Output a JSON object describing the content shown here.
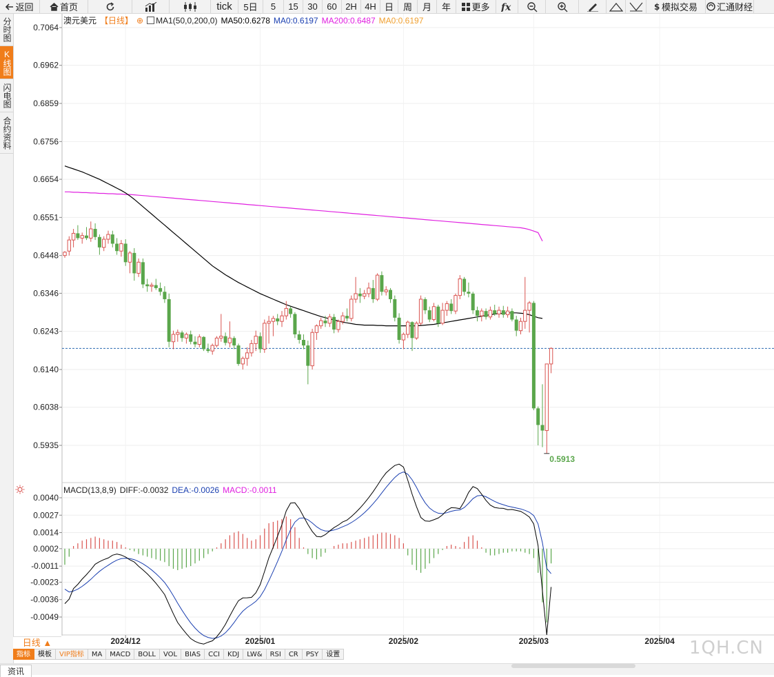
{
  "toolbar": {
    "items": [
      {
        "id": "back",
        "label": "返回",
        "icon": "back-arrow-icon"
      },
      {
        "id": "home",
        "label": "首页",
        "icon": "home-icon"
      },
      {
        "id": "refresh",
        "label": "",
        "icon": "refresh-icon"
      },
      {
        "id": "bars",
        "label": "",
        "icon": "bar-chart-icon"
      },
      {
        "id": "candle",
        "label": "",
        "icon": "candlestick-icon"
      },
      {
        "id": "tick",
        "label": "tick",
        "icon": ""
      },
      {
        "id": "d5",
        "label": "5日",
        "icon": ""
      },
      {
        "id": "m5",
        "label": "5",
        "icon": ""
      },
      {
        "id": "m15",
        "label": "15",
        "icon": ""
      },
      {
        "id": "m30",
        "label": "30",
        "icon": ""
      },
      {
        "id": "m60",
        "label": "60",
        "icon": ""
      },
      {
        "id": "h2",
        "label": "2H",
        "icon": ""
      },
      {
        "id": "h4",
        "label": "4H",
        "icon": ""
      },
      {
        "id": "day",
        "label": "日",
        "icon": ""
      },
      {
        "id": "week",
        "label": "周",
        "icon": ""
      },
      {
        "id": "month",
        "label": "月",
        "icon": ""
      },
      {
        "id": "year",
        "label": "年",
        "icon": ""
      },
      {
        "id": "more",
        "label": "更多",
        "icon": "grid-icon"
      },
      {
        "id": "fx",
        "label": "",
        "icon": "function-icon"
      },
      {
        "id": "zoomout",
        "label": "",
        "icon": "zoom-out-icon"
      },
      {
        "id": "zoomin",
        "label": "",
        "icon": "zoom-in-icon"
      },
      {
        "id": "draw",
        "label": "",
        "icon": "pen-icon"
      },
      {
        "id": "up",
        "label": "",
        "icon": "triangle-up-icon"
      },
      {
        "id": "down",
        "label": "",
        "icon": "triangle-down-icon"
      },
      {
        "id": "sim",
        "label": "模拟交易",
        "icon": "dollar-icon"
      },
      {
        "id": "huitong",
        "label": "汇通财经",
        "icon": "logo-icon"
      }
    ]
  },
  "sidetabs": [
    {
      "label": "分时图",
      "active": false
    },
    {
      "label": "K线图",
      "active": true
    },
    {
      "label": "闪电图",
      "active": false
    },
    {
      "label": "合约资料",
      "active": false
    }
  ],
  "legend_main": {
    "symbol": "澳元美元",
    "period": "【日线】",
    "ma1": "MA1(50,0,200,0)",
    "ma50": "MA50:0.6278",
    "ma0a": "MA0:0.6197",
    "ma200": "MA200:0.6487",
    "ma0b": "MA0:0.6197"
  },
  "legend_macd": {
    "name": "MACD(13,8,9)",
    "diff": "DIFF:-0.0032",
    "dea": "DEA:-0.0026",
    "macd": "MACD:-0.0011"
  },
  "period_tag": "日线 ▲",
  "bottom_tabs": [
    {
      "label": "指标",
      "active": true,
      "vip": false
    },
    {
      "label": "模板",
      "active": false,
      "vip": false
    },
    {
      "label": "VIP指标",
      "active": false,
      "vip": true
    },
    {
      "label": "MA",
      "active": false,
      "vip": false
    },
    {
      "label": "MACD",
      "active": false,
      "vip": false
    },
    {
      "label": "BOLL",
      "active": false,
      "vip": false
    },
    {
      "label": "VOL",
      "active": false,
      "vip": false
    },
    {
      "label": "BIAS",
      "active": false,
      "vip": false
    },
    {
      "label": "CCI",
      "active": false,
      "vip": false
    },
    {
      "label": "KDJ",
      "active": false,
      "vip": false
    },
    {
      "label": "LW&",
      "active": false,
      "vip": false
    },
    {
      "label": "RSI",
      "active": false,
      "vip": false
    },
    {
      "label": "CR",
      "active": false,
      "vip": false
    },
    {
      "label": "PSY",
      "active": false,
      "vip": false
    },
    {
      "label": "设置",
      "active": false,
      "vip": false
    }
  ],
  "watermark": "1QH.CN",
  "footer_tab": "资讯",
  "colors": {
    "up": "#d9534f",
    "down": "#5aa64b",
    "ma50": "#000000",
    "ma200": "#e020e0",
    "ref": "#2a6ab0",
    "orange": "#f07d1a",
    "dea": "#1a3fb0"
  },
  "chart_data": {
    "type": "candlestick",
    "title": "澳元美元 日线",
    "price_axis": {
      "ticks": [
        "0.7064",
        "0.6962",
        "0.6859",
        "0.6756",
        "0.6654",
        "0.6551",
        "0.6448",
        "0.6346",
        "0.6243",
        "0.6140",
        "0.6038",
        "0.5935"
      ],
      "range": [
        0.586,
        0.71
      ]
    },
    "date_ticks": [
      {
        "label": "2024/12",
        "index": 14
      },
      {
        "label": "2025/01",
        "index": 45
      },
      {
        "label": "2025/02",
        "index": 78
      },
      {
        "label": "2025/03",
        "index": 108
      },
      {
        "label": "2025/04",
        "index": 137
      }
    ],
    "last_price_line": 0.6197,
    "low_annotation": "0.5913",
    "candles": [
      [
        0.6448,
        0.646,
        0.6442,
        0.6457
      ],
      [
        0.646,
        0.65,
        0.6448,
        0.649
      ],
      [
        0.649,
        0.652,
        0.647,
        0.6508
      ],
      [
        0.6508,
        0.653,
        0.649,
        0.6495
      ],
      [
        0.6495,
        0.651,
        0.648,
        0.6502
      ],
      [
        0.6502,
        0.6525,
        0.649,
        0.6495
      ],
      [
        0.6495,
        0.654,
        0.6485,
        0.652
      ],
      [
        0.652,
        0.6535,
        0.649,
        0.6498
      ],
      [
        0.6498,
        0.6505,
        0.645,
        0.647
      ],
      [
        0.647,
        0.65,
        0.646,
        0.6492
      ],
      [
        0.6492,
        0.6515,
        0.648,
        0.6505
      ],
      [
        0.6505,
        0.6515,
        0.647,
        0.648
      ],
      [
        0.648,
        0.6495,
        0.645,
        0.646
      ],
      [
        0.646,
        0.649,
        0.6445,
        0.648
      ],
      [
        0.648,
        0.6492,
        0.642,
        0.643
      ],
      [
        0.643,
        0.646,
        0.64,
        0.6455
      ],
      [
        0.6455,
        0.6468,
        0.638,
        0.64
      ],
      [
        0.64,
        0.644,
        0.639,
        0.643
      ],
      [
        0.643,
        0.644,
        0.636,
        0.637
      ],
      [
        0.637,
        0.6385,
        0.635,
        0.6365
      ],
      [
        0.6365,
        0.6375,
        0.635,
        0.6368
      ],
      [
        0.6368,
        0.6385,
        0.6355,
        0.636
      ],
      [
        0.636,
        0.6375,
        0.634,
        0.635
      ],
      [
        0.635,
        0.6365,
        0.632,
        0.633
      ],
      [
        0.633,
        0.6345,
        0.62,
        0.6215
      ],
      [
        0.6215,
        0.6245,
        0.6195,
        0.6235
      ],
      [
        0.6235,
        0.6248,
        0.6215,
        0.624
      ],
      [
        0.624,
        0.6245,
        0.6215,
        0.6225
      ],
      [
        0.6225,
        0.624,
        0.621,
        0.6235
      ],
      [
        0.6235,
        0.6245,
        0.6208,
        0.6215
      ],
      [
        0.6215,
        0.623,
        0.62,
        0.6208
      ],
      [
        0.6208,
        0.6235,
        0.62,
        0.6228
      ],
      [
        0.6228,
        0.623,
        0.619,
        0.6195
      ],
      [
        0.6195,
        0.621,
        0.6185,
        0.619
      ],
      [
        0.619,
        0.621,
        0.618,
        0.6205
      ],
      [
        0.6205,
        0.623,
        0.62,
        0.6225
      ],
      [
        0.6225,
        0.629,
        0.6215,
        0.623
      ],
      [
        0.623,
        0.624,
        0.6205,
        0.6212
      ],
      [
        0.6212,
        0.627,
        0.62,
        0.6225
      ],
      [
        0.6225,
        0.623,
        0.6195,
        0.6205
      ],
      [
        0.6205,
        0.621,
        0.615,
        0.6155
      ],
      [
        0.6155,
        0.6175,
        0.614,
        0.617
      ],
      [
        0.617,
        0.62,
        0.615,
        0.6185
      ],
      [
        0.6185,
        0.622,
        0.6175,
        0.621
      ],
      [
        0.621,
        0.6245,
        0.619,
        0.623
      ],
      [
        0.623,
        0.624,
        0.6185,
        0.6195
      ],
      [
        0.6195,
        0.6275,
        0.6185,
        0.6265
      ],
      [
        0.6265,
        0.6285,
        0.621,
        0.627
      ],
      [
        0.627,
        0.6285,
        0.623,
        0.6278
      ],
      [
        0.6278,
        0.629,
        0.626,
        0.627
      ],
      [
        0.627,
        0.6298,
        0.6255,
        0.6285
      ],
      [
        0.6285,
        0.6325,
        0.6275,
        0.6305
      ],
      [
        0.6305,
        0.631,
        0.628,
        0.629
      ],
      [
        0.629,
        0.6295,
        0.6225,
        0.6235
      ],
      [
        0.6235,
        0.6245,
        0.621,
        0.622
      ],
      [
        0.622,
        0.6235,
        0.6195,
        0.6205
      ],
      [
        0.6205,
        0.6218,
        0.61,
        0.615
      ],
      [
        0.615,
        0.625,
        0.614,
        0.624
      ],
      [
        0.624,
        0.6262,
        0.622,
        0.6258
      ],
      [
        0.6258,
        0.628,
        0.625,
        0.6272
      ],
      [
        0.6272,
        0.6285,
        0.6255,
        0.6265
      ],
      [
        0.6265,
        0.629,
        0.6255,
        0.6282
      ],
      [
        0.6282,
        0.629,
        0.6238,
        0.6248
      ],
      [
        0.6248,
        0.6275,
        0.624,
        0.627
      ],
      [
        0.627,
        0.6295,
        0.6262,
        0.6285
      ],
      [
        0.6285,
        0.6305,
        0.627,
        0.6278
      ],
      [
        0.6278,
        0.634,
        0.627,
        0.633
      ],
      [
        0.633,
        0.639,
        0.632,
        0.6345
      ],
      [
        0.6345,
        0.636,
        0.632,
        0.6338
      ],
      [
        0.6338,
        0.6355,
        0.633,
        0.6345
      ],
      [
        0.6345,
        0.6375,
        0.6335,
        0.636
      ],
      [
        0.636,
        0.6382,
        0.632,
        0.633
      ],
      [
        0.633,
        0.64,
        0.6325,
        0.6395
      ],
      [
        0.6395,
        0.6405,
        0.634,
        0.635
      ],
      [
        0.635,
        0.6365,
        0.634,
        0.6355
      ],
      [
        0.6355,
        0.636,
        0.632,
        0.633
      ],
      [
        0.633,
        0.634,
        0.627,
        0.628
      ],
      [
        0.628,
        0.6292,
        0.621,
        0.622
      ],
      [
        0.622,
        0.624,
        0.6195,
        0.6235
      ],
      [
        0.6235,
        0.6272,
        0.6225,
        0.6268
      ],
      [
        0.6268,
        0.627,
        0.619,
        0.6225
      ],
      [
        0.6225,
        0.627,
        0.622,
        0.6265
      ],
      [
        0.6265,
        0.634,
        0.626,
        0.633
      ],
      [
        0.633,
        0.6335,
        0.629,
        0.63
      ],
      [
        0.63,
        0.631,
        0.6268,
        0.6275
      ],
      [
        0.6275,
        0.632,
        0.627,
        0.631
      ],
      [
        0.631,
        0.6315,
        0.6255,
        0.6265
      ],
      [
        0.6265,
        0.632,
        0.626,
        0.63
      ],
      [
        0.63,
        0.6325,
        0.6285,
        0.6318
      ],
      [
        0.6318,
        0.633,
        0.629,
        0.6298
      ],
      [
        0.6298,
        0.6345,
        0.629,
        0.634
      ],
      [
        0.634,
        0.6395,
        0.633,
        0.6385
      ],
      [
        0.6385,
        0.639,
        0.634,
        0.635
      ],
      [
        0.635,
        0.6375,
        0.6335,
        0.6345
      ],
      [
        0.6345,
        0.635,
        0.629,
        0.63
      ],
      [
        0.63,
        0.631,
        0.627,
        0.6285
      ],
      [
        0.6285,
        0.6305,
        0.627,
        0.6298
      ],
      [
        0.6298,
        0.6305,
        0.6275,
        0.6282
      ],
      [
        0.6282,
        0.631,
        0.6275,
        0.63
      ],
      [
        0.63,
        0.6315,
        0.6285,
        0.629
      ],
      [
        0.629,
        0.631,
        0.628,
        0.63
      ],
      [
        0.63,
        0.6312,
        0.628,
        0.6288
      ],
      [
        0.6288,
        0.631,
        0.628,
        0.6298
      ],
      [
        0.6298,
        0.6305,
        0.627,
        0.6275
      ],
      [
        0.6275,
        0.6285,
        0.623,
        0.6245
      ],
      [
        0.6245,
        0.628,
        0.6235,
        0.627
      ],
      [
        0.627,
        0.639,
        0.625,
        0.63
      ],
      [
        0.63,
        0.6325,
        0.624,
        0.632
      ],
      [
        0.632,
        0.6325,
        0.603,
        0.6035
      ],
      [
        0.6035,
        0.604,
        0.5935,
        0.599
      ],
      [
        0.599,
        0.61,
        0.593,
        0.5975
      ],
      [
        0.5975,
        0.6155,
        0.5913,
        0.6155
      ],
      [
        0.6155,
        0.62,
        0.613,
        0.6197
      ]
    ],
    "ma50": [
      0.669,
      0.6686,
      0.6682,
      0.6678,
      0.6674,
      0.6669,
      0.6664,
      0.6659,
      0.6654,
      0.6648,
      0.6642,
      0.6636,
      0.663,
      0.6624,
      0.6617,
      0.6609,
      0.66,
      0.659,
      0.658,
      0.657,
      0.656,
      0.655,
      0.654,
      0.653,
      0.652,
      0.651,
      0.65,
      0.649,
      0.648,
      0.647,
      0.646,
      0.645,
      0.644,
      0.643,
      0.642,
      0.6412,
      0.6404,
      0.6396,
      0.6389,
      0.6382,
      0.6375,
      0.6369,
      0.6363,
      0.6357,
      0.6351,
      0.6345,
      0.634,
      0.6335,
      0.633,
      0.6325,
      0.632,
      0.6315,
      0.6311,
      0.6307,
      0.6303,
      0.6299,
      0.6295,
      0.6291,
      0.6287,
      0.6283,
      0.628,
      0.6277,
      0.6274,
      0.6271,
      0.6268,
      0.6266,
      0.6264,
      0.6262,
      0.6261,
      0.626,
      0.626,
      0.626,
      0.6259,
      0.6259,
      0.6258,
      0.6258,
      0.6258,
      0.6258,
      0.6258,
      0.6258,
      0.6258,
      0.6258,
      0.6259,
      0.626,
      0.6261,
      0.6262,
      0.6264,
      0.6266,
      0.6268,
      0.627,
      0.6272,
      0.6274,
      0.6276,
      0.6278,
      0.628,
      0.6282,
      0.6284,
      0.6286,
      0.6288,
      0.629,
      0.6291,
      0.6292,
      0.6293,
      0.6293,
      0.6293,
      0.6292,
      0.6291,
      0.6288,
      0.6284,
      0.628,
      0.6278
    ],
    "ma200": [
      0.662,
      0.662,
      0.6619,
      0.6619,
      0.6618,
      0.6618,
      0.6617,
      0.6617,
      0.6616,
      0.6616,
      0.6615,
      0.6615,
      0.6614,
      0.6614,
      0.6613,
      0.6613,
      0.6612,
      0.6611,
      0.661,
      0.6609,
      0.6608,
      0.6607,
      0.6606,
      0.6605,
      0.6604,
      0.6603,
      0.6602,
      0.6601,
      0.66,
      0.6599,
      0.6598,
      0.6597,
      0.6596,
      0.6595,
      0.6594,
      0.6593,
      0.6592,
      0.6591,
      0.659,
      0.6589,
      0.6588,
      0.6587,
      0.6586,
      0.6585,
      0.6584,
      0.6583,
      0.6582,
      0.6581,
      0.658,
      0.6579,
      0.6578,
      0.6577,
      0.6576,
      0.6575,
      0.6574,
      0.6573,
      0.6572,
      0.6571,
      0.657,
      0.6569,
      0.6568,
      0.6567,
      0.6566,
      0.6565,
      0.6564,
      0.6563,
      0.6562,
      0.6561,
      0.656,
      0.6559,
      0.6558,
      0.6557,
      0.6556,
      0.6555,
      0.6554,
      0.6553,
      0.6552,
      0.6551,
      0.655,
      0.6549,
      0.6548,
      0.6547,
      0.6546,
      0.6545,
      0.6544,
      0.6543,
      0.6542,
      0.6541,
      0.654,
      0.6539,
      0.6538,
      0.6537,
      0.6536,
      0.6535,
      0.6534,
      0.6533,
      0.6532,
      0.6531,
      0.653,
      0.6529,
      0.6528,
      0.6527,
      0.6526,
      0.6525,
      0.6524,
      0.6523,
      0.6521,
      0.6518,
      0.6514,
      0.651,
      0.6487
    ],
    "macd_axis": {
      "ticks": [
        "0.0040",
        "0.0027",
        "0.0014",
        "0.0002",
        "-0.0011",
        "-0.0023",
        "-0.0036",
        "-0.0049"
      ],
      "range": [
        -0.0058,
        0.0044
      ]
    },
    "macd_hist": [
      -0.0012,
      -0.0006,
      0.0002,
      0.0004,
      0.0006,
      0.0007,
      0.0008,
      0.0009,
      0.0008,
      0.0007,
      0.0006,
      0.0006,
      0.0005,
      0.0003,
      0.0001,
      -0.0001,
      -0.0002,
      -0.0004,
      -0.0005,
      -0.0006,
      -0.0007,
      -0.0008,
      -0.0009,
      -0.001,
      -0.0013,
      -0.0015,
      -0.0016,
      -0.0015,
      -0.0014,
      -0.0013,
      -0.0011,
      -0.0009,
      -0.0007,
      -0.0004,
      -0.0002,
      0.0001,
      0.0004,
      0.0007,
      0.001,
      0.0012,
      0.0013,
      0.0011,
      0.0008,
      0.0006,
      0.0007,
      0.001,
      0.0015,
      0.0019,
      0.002,
      0.0021,
      0.0022,
      0.0024,
      0.0022,
      0.0016,
      0.0008,
      0.0001,
      -0.0004,
      -0.0007,
      -0.0008,
      -0.0006,
      -0.0003,
      0.0,
      0.0002,
      0.0003,
      0.0004,
      0.0004,
      0.0005,
      0.0006,
      0.0007,
      0.0008,
      0.0009,
      0.001,
      0.0011,
      0.0012,
      0.0012,
      0.0011,
      0.001,
      0.0008,
      0.0004,
      -0.0005,
      -0.0012,
      -0.0016,
      -0.0018,
      -0.0015,
      -0.0011,
      -0.0007,
      -0.0004,
      -0.0001,
      0.0002,
      0.0003,
      0.0002,
      0.0001,
      0.0005,
      0.0009,
      0.001,
      0.0006,
      0.0001,
      -0.0003,
      -0.0005,
      -0.0005,
      -0.0004,
      -0.0003,
      -0.0003,
      -0.0002,
      -0.0002,
      -0.0002,
      -0.0003,
      -0.0004,
      -0.0007,
      -0.0018,
      -0.004,
      -0.0055,
      -0.0011
    ]
  }
}
